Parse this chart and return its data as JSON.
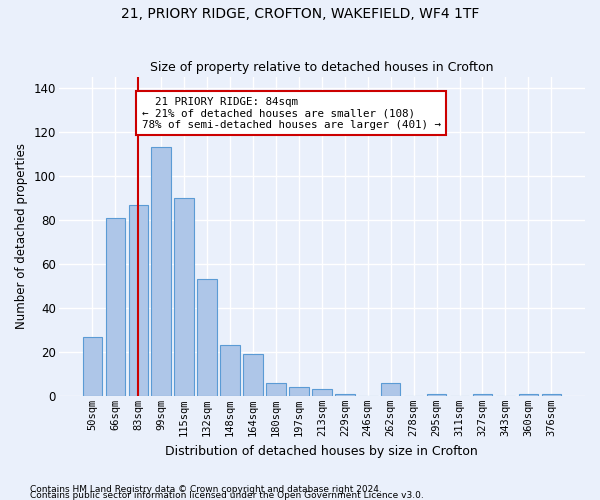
{
  "title1": "21, PRIORY RIDGE, CROFTON, WAKEFIELD, WF4 1TF",
  "title2": "Size of property relative to detached houses in Crofton",
  "xlabel": "Distribution of detached houses by size in Crofton",
  "ylabel": "Number of detached properties",
  "footnote1": "Contains HM Land Registry data © Crown copyright and database right 2024.",
  "footnote2": "Contains public sector information licensed under the Open Government Licence v3.0.",
  "bar_labels": [
    "50sqm",
    "66sqm",
    "83sqm",
    "99sqm",
    "115sqm",
    "132sqm",
    "148sqm",
    "164sqm",
    "180sqm",
    "197sqm",
    "213sqm",
    "229sqm",
    "246sqm",
    "262sqm",
    "278sqm",
    "295sqm",
    "311sqm",
    "327sqm",
    "343sqm",
    "360sqm",
    "376sqm"
  ],
  "bar_values": [
    27,
    81,
    87,
    113,
    90,
    53,
    23,
    19,
    6,
    4,
    3,
    1,
    0,
    6,
    0,
    1,
    0,
    1,
    0,
    1,
    1
  ],
  "bar_color": "#aec6e8",
  "bar_edgecolor": "#5b9bd5",
  "bg_color": "#eaf0fb",
  "grid_color": "#ffffff",
  "vline_x_index": 2,
  "vline_color": "#cc0000",
  "annotation_line1": "  21 PRIORY RIDGE: 84sqm",
  "annotation_line2": "← 21% of detached houses are smaller (108)",
  "annotation_line3": "78% of semi-detached houses are larger (401) →",
  "annotation_box_color": "#ffffff",
  "annotation_box_edgecolor": "#cc0000",
  "ylim": [
    0,
    145
  ],
  "yticks": [
    0,
    20,
    40,
    60,
    80,
    100,
    120,
    140
  ],
  "title1_fontsize": 10,
  "title2_fontsize": 9
}
